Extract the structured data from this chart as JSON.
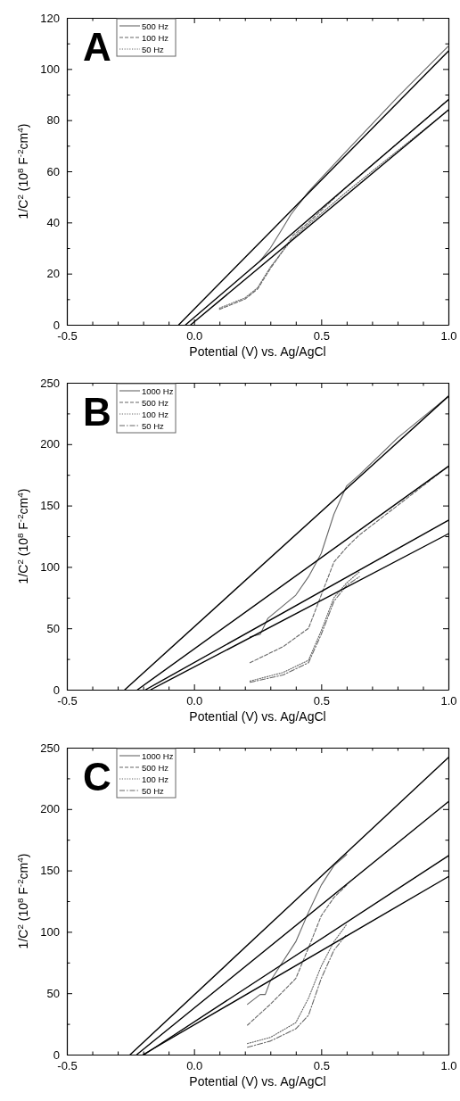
{
  "chart_data": [
    {
      "type": "line",
      "xlabel": "Potential (V) vs. Ag/AgCl",
      "ylabel": "1/C$^{2}$ (10$^{8}$ F$^{-2}$cm$^{4}$)",
      "annotations": [
        "A"
      ],
      "legend": "top left",
      "xlim": [
        -0.5,
        1.0
      ],
      "ylim": [
        0,
        120
      ],
      "xticks": [
        {
          "value": -0.5,
          "label": "-0.5"
        },
        {
          "value": -0.4,
          "label": null
        },
        {
          "value": -0.3,
          "label": null
        },
        {
          "value": -0.2,
          "label": null
        },
        {
          "value": -0.1,
          "label": null
        },
        {
          "value": 0,
          "label": "0.0"
        },
        {
          "value": 0.1,
          "label": null
        },
        {
          "value": 0.2,
          "label": null
        },
        {
          "value": 0.3,
          "label": null
        },
        {
          "value": 0.4,
          "label": null
        },
        {
          "value": 0.5,
          "label": "0.5"
        },
        {
          "value": 0.6,
          "label": null
        },
        {
          "value": 0.7,
          "label": null
        },
        {
          "value": 0.8,
          "label": null
        },
        {
          "value": 0.9,
          "label": null
        },
        {
          "value": 1.0,
          "label": "1.0"
        }
      ],
      "yticks": [
        0,
        {
          "value": 10,
          "label": null
        },
        20,
        {
          "value": 30,
          "label": null
        },
        40,
        {
          "value": 50,
          "label": null
        },
        60,
        {
          "value": 70,
          "label": null
        },
        80,
        {
          "value": 90,
          "label": null
        },
        100,
        {
          "value": 110,
          "label": null
        },
        120
      ],
      "series": [
        {
          "name": "500 Hz",
          "color": "#666666",
          "line_style": "solid",
          "x": [
            0.26,
            0.3,
            0.35,
            0.38,
            0.45,
            0.6,
            0.8,
            1.0
          ],
          "values": [
            25,
            30,
            38,
            43,
            52,
            68,
            89,
            109
          ]
        },
        {
          "name": "100 Hz",
          "color": "#666666",
          "line_style": "dashed",
          "x": [
            0.1,
            0.2,
            0.25,
            0.3,
            0.35,
            0.39,
            0.45,
            0.6,
            0.8,
            1.0
          ],
          "values": [
            6,
            10,
            14,
            22,
            29,
            35,
            40,
            54,
            71,
            88
          ]
        },
        {
          "name": "50 Hz",
          "color": "#666666",
          "line_style": "dotted",
          "x": [
            0.1,
            0.2,
            0.25,
            0.3,
            0.35,
            0.4,
            0.6,
            0.8,
            1.0
          ],
          "values": [
            6.5,
            10.5,
            14.5,
            22.5,
            29,
            35,
            52,
            68,
            84
          ]
        },
        {
          "color": "#000000",
          "line_style": "solid",
          "x": [
            -0.06,
            1.0
          ],
          "values": [
            0,
            107
          ]
        },
        {
          "color": "#000000",
          "line_style": "solid",
          "x": [
            -0.033,
            1.0
          ],
          "values": [
            0,
            88
          ]
        },
        {
          "color": "#000000",
          "line_style": "solid",
          "x": [
            -0.013,
            1.0
          ],
          "values": [
            0,
            84
          ]
        }
      ]
    },
    {
      "type": "line",
      "xlabel": "Potential (V) vs. Ag/AgCl",
      "ylabel": "1/C$^{2}$ (10$^{8}$ F$^{-2}$cm$^{4}$)",
      "annotations": [
        "B"
      ],
      "legend": "top left",
      "xlim": [
        -0.5,
        1.0
      ],
      "ylim": [
        0,
        250
      ],
      "xticks": [
        {
          "value": -0.5,
          "label": "-0.5"
        },
        {
          "value": -0.4,
          "label": null
        },
        {
          "value": -0.3,
          "label": null
        },
        {
          "value": -0.2,
          "label": null
        },
        {
          "value": -0.1,
          "label": null
        },
        {
          "value": 0,
          "label": "0.0"
        },
        {
          "value": 0.1,
          "label": null
        },
        {
          "value": 0.2,
          "label": null
        },
        {
          "value": 0.3,
          "label": null
        },
        {
          "value": 0.4,
          "label": null
        },
        {
          "value": 0.5,
          "label": "0.5"
        },
        {
          "value": 0.6,
          "label": null
        },
        {
          "value": 0.7,
          "label": null
        },
        {
          "value": 0.8,
          "label": null
        },
        {
          "value": 0.9,
          "label": null
        },
        {
          "value": 1.0,
          "label": "1.0"
        }
      ],
      "yticks": [
        0,
        {
          "value": 25,
          "label": null
        },
        50,
        {
          "value": 75,
          "label": null
        },
        100,
        {
          "value": 125,
          "label": null
        },
        150,
        {
          "value": 175,
          "label": null
        },
        200,
        {
          "value": 225,
          "label": null
        },
        250
      ],
      "series": [
        {
          "name": "1000 Hz",
          "color": "#666666",
          "line_style": "solid",
          "x": [
            0.22,
            0.26,
            0.29,
            0.4,
            0.45,
            0.5,
            0.55,
            0.6,
            0.65,
            0.8,
            1.0
          ],
          "values": [
            43,
            45,
            58,
            77,
            92,
            111,
            143,
            166,
            175,
            205,
            239
          ]
        },
        {
          "name": "500 Hz",
          "color": "#666666",
          "line_style": "dashed",
          "x": [
            0.22,
            0.35,
            0.45,
            0.5,
            0.55,
            0.6,
            0.65,
            0.8,
            1.0
          ],
          "values": [
            22,
            35,
            50,
            77,
            104,
            116,
            126,
            150,
            182
          ]
        },
        {
          "name": "100 Hz",
          "color": "#666666",
          "line_style": "dotted",
          "x": [
            0.22,
            0.35,
            0.45,
            0.5,
            0.55,
            0.6,
            0.65
          ],
          "values": [
            7,
            14,
            24,
            48,
            75,
            87,
            96
          ]
        },
        {
          "name": "50 Hz",
          "color": "#666666",
          "line_style": "dashdot",
          "x": [
            0.22,
            0.35,
            0.45,
            0.5,
            0.55,
            0.6,
            0.65
          ],
          "values": [
            6,
            12,
            22,
            45,
            72,
            85,
            92
          ]
        },
        {
          "color": "#000000",
          "line_style": "solid",
          "x": [
            -0.272,
            1.0
          ],
          "values": [
            0,
            239
          ]
        },
        {
          "color": "#000000",
          "line_style": "solid",
          "x": [
            -0.222,
            1.0
          ],
          "values": [
            0,
            182
          ]
        },
        {
          "color": "#000000",
          "line_style": "solid",
          "x": [
            -0.19,
            1.0
          ],
          "values": [
            0,
            138
          ]
        },
        {
          "color": "#000000",
          "line_style": "solid",
          "x": [
            -0.17,
            1.0
          ],
          "values": [
            0,
            127
          ]
        }
      ]
    },
    {
      "type": "line",
      "xlabel": "Potential (V) vs. Ag/AgCl",
      "ylabel": "1/C$^{2}$ (10$^{8}$ F$^{-2}$cm$^{4}$)",
      "annotations": [
        "C"
      ],
      "legend": "top left",
      "xlim": [
        -0.5,
        1.0
      ],
      "ylim": [
        0,
        250
      ],
      "xticks": [
        {
          "value": -0.5,
          "label": "-0.5"
        },
        {
          "value": -0.4,
          "label": null
        },
        {
          "value": -0.3,
          "label": null
        },
        {
          "value": -0.2,
          "label": null
        },
        {
          "value": -0.1,
          "label": null
        },
        {
          "value": 0,
          "label": "0.0"
        },
        {
          "value": 0.1,
          "label": null
        },
        {
          "value": 0.2,
          "label": null
        },
        {
          "value": 0.3,
          "label": null
        },
        {
          "value": 0.4,
          "label": null
        },
        {
          "value": 0.5,
          "label": "0.5"
        },
        {
          "value": 0.6,
          "label": null
        },
        {
          "value": 0.7,
          "label": null
        },
        {
          "value": 0.8,
          "label": null
        },
        {
          "value": 0.9,
          "label": null
        },
        {
          "value": 1.0,
          "label": "1.0"
        }
      ],
      "yticks": [
        0,
        {
          "value": 25,
          "label": null
        },
        50,
        {
          "value": 75,
          "label": null
        },
        100,
        {
          "value": 125,
          "label": null
        },
        150,
        {
          "value": 175,
          "label": null
        },
        200,
        {
          "value": 225,
          "label": null
        },
        250
      ],
      "series": [
        {
          "name": "1000 Hz",
          "color": "#666666",
          "line_style": "solid",
          "x": [
            0.21,
            0.26,
            0.28,
            0.3,
            0.4,
            0.45,
            0.5,
            0.55,
            0.6
          ],
          "values": [
            41,
            49,
            49,
            60,
            92,
            116,
            138,
            154,
            163
          ]
        },
        {
          "name": "500 Hz",
          "color": "#666666",
          "line_style": "dashed",
          "x": [
            0.21,
            0.3,
            0.4,
            0.45,
            0.5,
            0.55,
            0.6
          ],
          "values": [
            24,
            41,
            62,
            87,
            113,
            128,
            138
          ]
        },
        {
          "name": "100 Hz",
          "color": "#666666",
          "line_style": "dotted",
          "x": [
            0.21,
            0.3,
            0.4,
            0.45,
            0.5,
            0.55,
            0.6
          ],
          "values": [
            9,
            14,
            26,
            46,
            72,
            92,
            106
          ]
        },
        {
          "name": "50 Hz",
          "color": "#666666",
          "line_style": "dashdot",
          "x": [
            0.21,
            0.3,
            0.4,
            0.45,
            0.5,
            0.55,
            0.6
          ],
          "values": [
            6,
            11,
            21,
            32,
            62,
            85,
            98
          ]
        },
        {
          "color": "#000000",
          "line_style": "solid",
          "x": [
            -0.251,
            1.0
          ],
          "values": [
            0,
            242
          ]
        },
        {
          "color": "#000000",
          "line_style": "solid",
          "x": [
            -0.225,
            1.0
          ],
          "values": [
            0,
            206
          ]
        },
        {
          "color": "#000000",
          "line_style": "solid",
          "x": [
            -0.196,
            1.0
          ],
          "values": [
            0,
            162
          ]
        },
        {
          "color": "#000000",
          "line_style": "solid",
          "x": [
            -0.2,
            1.0
          ],
          "values": [
            0,
            145
          ]
        }
      ]
    }
  ]
}
